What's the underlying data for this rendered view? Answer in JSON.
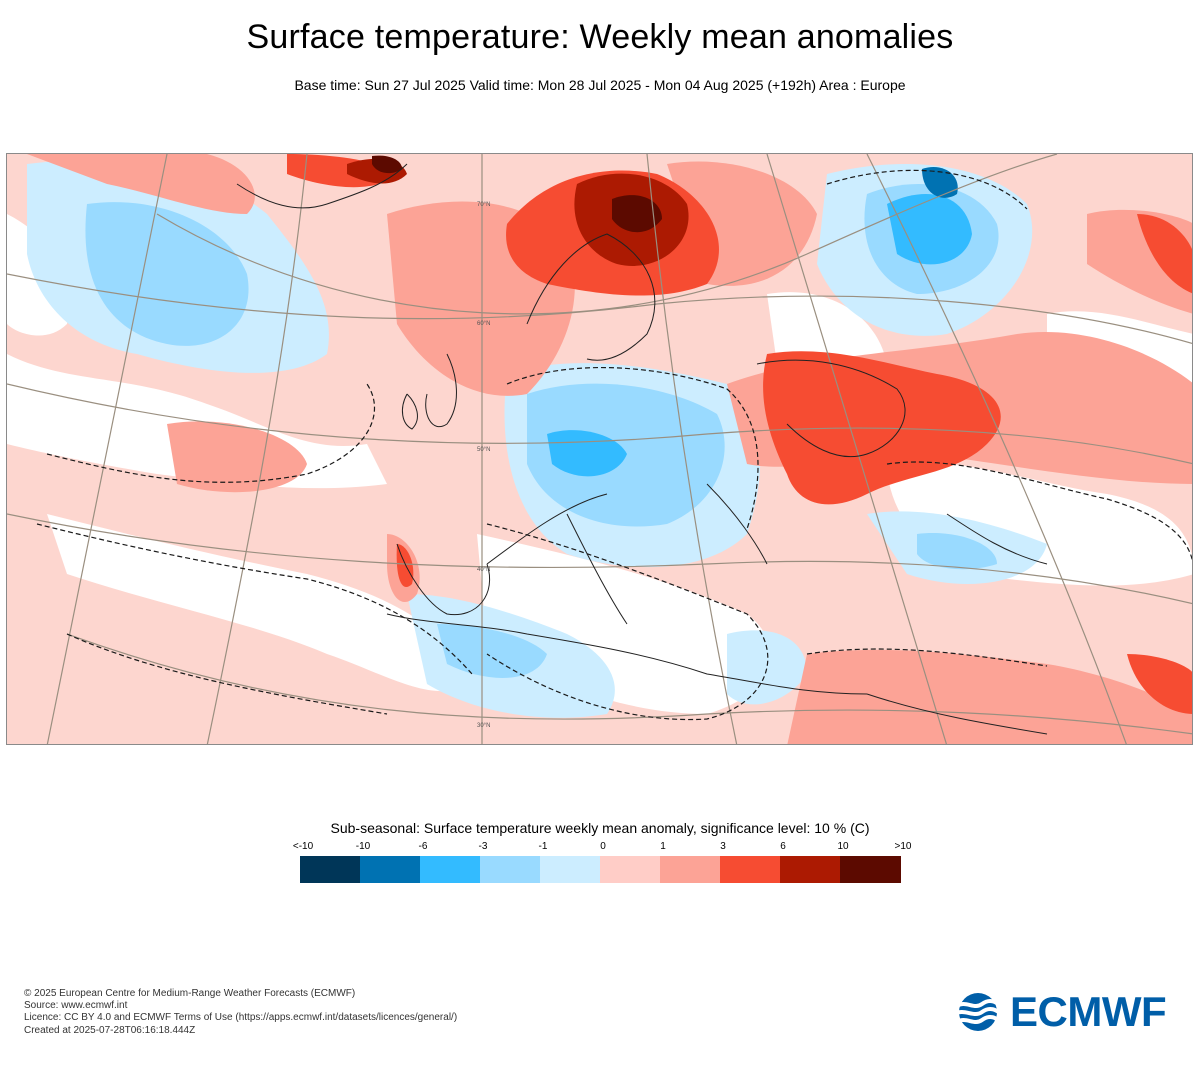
{
  "title": "Surface temperature: Weekly mean anomalies",
  "subtitle": "Base time: Sun 27 Jul 2025 Valid time: Mon 28 Jul 2025 - Mon 04 Aug 2025 (+192h) Area : Europe",
  "map": {
    "graticule_labels": [
      "70°N",
      "60°N",
      "50°N",
      "40°N",
      "30°N"
    ]
  },
  "legend": {
    "title": "Sub-seasonal: Surface temperature weekly mean anomaly, significance level: 10 % (C)",
    "ticks": [
      "<-10",
      "-10",
      "-6",
      "-3",
      "-1",
      "0",
      "1",
      "3",
      "6",
      "10",
      ">10"
    ],
    "colors": [
      "#003658",
      "#0072b2",
      "#33bbff",
      "#99daff",
      "#ccedff",
      "#ffcdc7",
      "#fca396",
      "#f64c32",
      "#ac1a02",
      "#5c0a00"
    ]
  },
  "footer": {
    "lines": [
      "© 2025 European Centre for Medium-Range Weather Forecasts (ECMWF)",
      "Source: www.ecmwf.int",
      "Licence: CC BY 4.0 and ECMWF Terms of Use (https://apps.ecmwf.int/datasets/licences/general/)",
      "Created at 2025-07-28T06:16:18.444Z"
    ]
  },
  "logo": {
    "text": "ECMWF",
    "icon": "ecmwf-logo-icon",
    "color": "#005ea8"
  }
}
